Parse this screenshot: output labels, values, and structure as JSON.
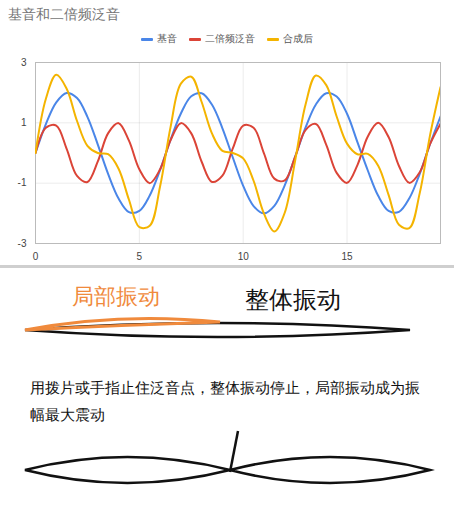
{
  "chart_data": {
    "type": "line",
    "title": "基音和二倍频泛音",
    "legend": "top",
    "grid": true,
    "x": [
      0,
      0.5,
      1,
      1.5,
      2,
      2.5,
      3,
      3.5,
      4,
      4.5,
      5,
      5.5,
      6,
      6.5,
      7,
      7.5,
      8,
      8.5,
      9,
      9.5,
      10,
      10.5,
      11,
      11.5,
      12,
      12.5,
      13,
      13.5,
      14,
      14.5,
      15,
      15.5,
      16,
      16.5,
      17,
      17.5,
      18,
      18.5,
      19,
      19.5
    ],
    "series": [
      {
        "name": "基音",
        "color": "#4a86e8",
        "values": [
          0,
          0.96,
          1.68,
          1.99,
          1.82,
          1.2,
          0.28,
          -0.7,
          -1.51,
          -1.96,
          -1.92,
          -1.41,
          -0.56,
          0.43,
          1.31,
          1.88,
          1.98,
          1.6,
          0.82,
          -0.15,
          -1.09,
          -1.76,
          -2.0,
          -1.75,
          -1.07,
          -0.13,
          0.84,
          1.61,
          1.98,
          1.87,
          1.3,
          0.36,
          -0.58,
          -1.42,
          -1.92,
          -1.95,
          -1.5,
          -0.69,
          0.3,
          1.21
        ]
      },
      {
        "name": "二倍频泛音",
        "color": "#db4437",
        "values": [
          0,
          0.84,
          0.91,
          0.14,
          -0.76,
          -0.96,
          -0.28,
          0.66,
          0.99,
          0.41,
          -0.54,
          -1.0,
          -0.54,
          0.42,
          0.99,
          0.65,
          -0.29,
          -0.96,
          -0.75,
          0.15,
          0.91,
          0.84,
          -0.01,
          -0.85,
          -0.91,
          -0.13,
          0.76,
          0.96,
          0.27,
          -0.66,
          -0.99,
          -0.4,
          0.55,
          1.0,
          0.53,
          -0.43,
          -0.99,
          -0.64,
          0.3,
          0.97
        ]
      },
      {
        "name": "合成后",
        "color": "#f4b400",
        "values": [
          0,
          1.8,
          2.59,
          2.13,
          1.06,
          0.24,
          0.0,
          -0.04,
          -0.52,
          -1.55,
          -2.46,
          -2.41,
          -1.1,
          0.85,
          2.3,
          2.53,
          1.69,
          0.64,
          0.07,
          0.0,
          -0.18,
          -0.92,
          -2.01,
          -2.6,
          -1.98,
          -0.26,
          1.6,
          2.57,
          2.25,
          1.21,
          0.31,
          -0.04,
          -0.03,
          -0.42,
          -1.39,
          -2.38,
          -2.49,
          -1.33,
          0.6,
          2.18
        ]
      }
    ],
    "xlim": [
      0,
      19.5
    ],
    "xticks": [
      0,
      5,
      10,
      15
    ],
    "ylim": [
      -3,
      3
    ],
    "yticks": [
      -3,
      -1,
      1,
      3
    ]
  },
  "diagram": {
    "local_label": "局部振动",
    "whole_label": "整体振动",
    "caption": "用拨片或手指止住泛音点，整体振动停止，局部振动成为振幅最大震动"
  }
}
